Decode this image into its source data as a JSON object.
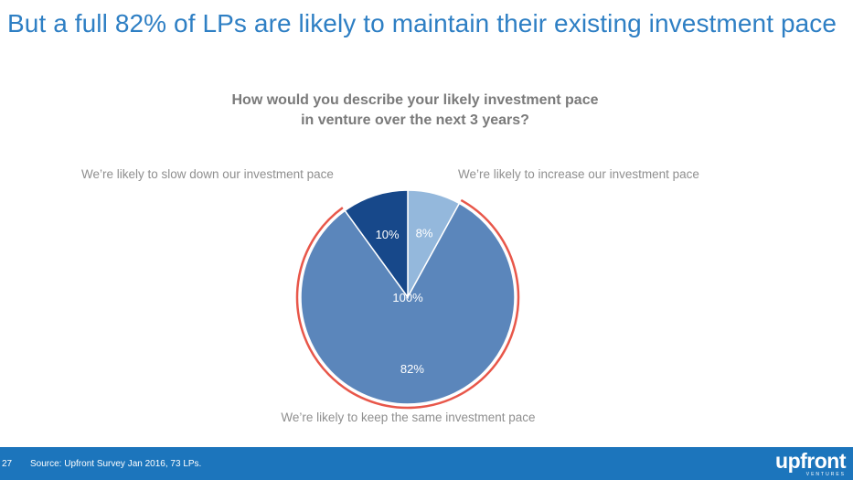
{
  "slide": {
    "headline": "But a full 82% of LPs are likely to maintain their existing investment pace",
    "page_number": "27",
    "source": "Source: Upfront Survey Jan 2016, 73 LPs.",
    "logo_text": "upfront",
    "logo_subtext": "VENTURES"
  },
  "chart_data": {
    "type": "pie",
    "title_line1": "How would you describe your likely investment pace",
    "title_line2": "in venture over the next 3 years?",
    "total_label": "100%",
    "slices": [
      {
        "label": "We’re likely to increase our investment pace",
        "value": 8,
        "value_label": "8%",
        "color": "#94b8dc"
      },
      {
        "label": "We’re likely to keep the same investment pace",
        "value": 82,
        "value_label": "82%",
        "color": "#5b86bb",
        "highlighted": true
      },
      {
        "label": "We’re likely to slow down our investment pace",
        "value": 10,
        "value_label": "10%",
        "color": "#17488a"
      }
    ],
    "highlight_color": "#e8574a"
  }
}
